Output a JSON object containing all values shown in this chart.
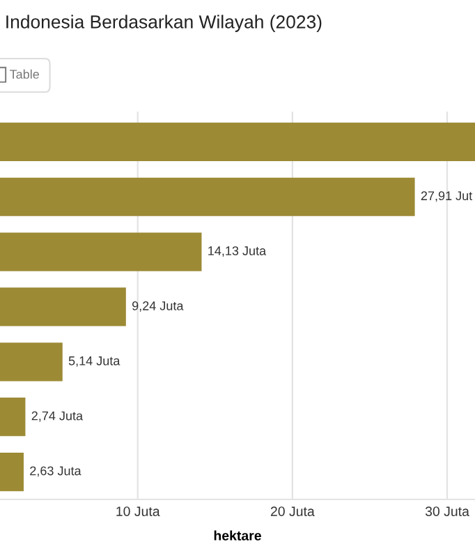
{
  "chart_data": {
    "type": "bar",
    "orientation": "horizontal",
    "title": "Indonesia Berdasarkan Wilayah (2023)",
    "annotations": [
      "Table"
    ],
    "categories": [
      null,
      null,
      null,
      null,
      null,
      null,
      null
    ],
    "values": [
      31.8,
      27.91,
      14.13,
      9.24,
      5.14,
      2.74,
      2.63
    ],
    "value_labels": [
      null,
      "27,91 Jut",
      "14,13 Juta",
      "9,24 Juta",
      "5,14 Juta",
      "2,74 Juta",
      "2,63 Juta"
    ],
    "color": "#9c8a35",
    "xlabel": "hektare",
    "xlim": [
      1.1,
      31.8
    ],
    "xticks": [
      {
        "value": 10,
        "label": "10 Juta"
      },
      {
        "value": 20,
        "label": "20 Juta"
      },
      {
        "value": 30,
        "label": "30 Juta"
      }
    ],
    "grid": "x",
    "legend": false
  }
}
